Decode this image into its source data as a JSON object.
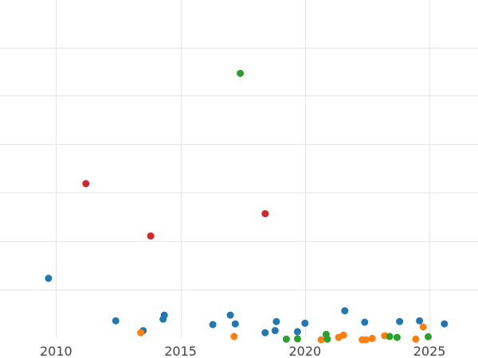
{
  "chart_data": {
    "type": "scatter",
    "title": "",
    "xlabel": "",
    "ylabel": "",
    "xlim": [
      2007.75,
      2026.95
    ],
    "ylim": [
      0,
      100
    ],
    "grid": true,
    "x_ticks": [
      2010,
      2015,
      2020,
      2025
    ],
    "x_tick_labels": [
      "2010",
      "2015",
      "2020",
      "2025"
    ],
    "y_ticks": [
      14.3,
      28.7,
      43.0,
      57.3,
      71.7,
      86.0
    ],
    "colors": {
      "blue": "#1f77b4",
      "orange": "#ff7f0e",
      "green": "#2ca02c",
      "red": "#d62728"
    },
    "series": [
      {
        "color_key": "blue",
        "points": [
          {
            "x": 2009.7,
            "y": 17.7
          },
          {
            "x": 2012.4,
            "y": 5.1
          },
          {
            "x": 2013.5,
            "y": 2.2
          },
          {
            "x": 2014.3,
            "y": 5.6
          },
          {
            "x": 2014.35,
            "y": 6.8
          },
          {
            "x": 2016.3,
            "y": 4.0
          },
          {
            "x": 2017.0,
            "y": 6.8
          },
          {
            "x": 2017.2,
            "y": 4.2
          },
          {
            "x": 2018.4,
            "y": 1.6
          },
          {
            "x": 2018.8,
            "y": 2.2
          },
          {
            "x": 2018.85,
            "y": 4.9
          },
          {
            "x": 2019.7,
            "y": 1.9
          },
          {
            "x": 2020.0,
            "y": 4.4
          },
          {
            "x": 2021.6,
            "y": 8.1
          },
          {
            "x": 2022.4,
            "y": 4.7
          },
          {
            "x": 2023.8,
            "y": 4.9
          },
          {
            "x": 2024.6,
            "y": 5.1
          },
          {
            "x": 2025.6,
            "y": 4.2
          }
        ]
      },
      {
        "color_key": "orange",
        "points": [
          {
            "x": 2013.4,
            "y": 1.6
          },
          {
            "x": 2017.15,
            "y": 0.5
          },
          {
            "x": 2020.65,
            "y": -0.5
          },
          {
            "x": 2021.35,
            "y": 0.2
          },
          {
            "x": 2021.55,
            "y": 0.9
          },
          {
            "x": 2022.3,
            "y": -0.5
          },
          {
            "x": 2022.45,
            "y": -0.5
          },
          {
            "x": 2022.7,
            "y": -0.1
          },
          {
            "x": 2023.2,
            "y": 0.7
          },
          {
            "x": 2024.45,
            "y": -0.3
          },
          {
            "x": 2024.75,
            "y": 3.3
          }
        ]
      },
      {
        "color_key": "green",
        "points": [
          {
            "x": 2017.4,
            "y": 78.3
          },
          {
            "x": 2019.25,
            "y": -0.3
          },
          {
            "x": 2019.7,
            "y": -0.2
          },
          {
            "x": 2020.85,
            "y": 1.1
          },
          {
            "x": 2020.9,
            "y": -0.3
          },
          {
            "x": 2023.4,
            "y": 0.5
          },
          {
            "x": 2023.7,
            "y": 0.2
          },
          {
            "x": 2024.95,
            "y": 0.4
          }
        ]
      },
      {
        "color_key": "red",
        "points": [
          {
            "x": 2011.2,
            "y": 45.7
          },
          {
            "x": 2013.8,
            "y": 30.2
          },
          {
            "x": 2018.4,
            "y": 36.8
          }
        ]
      }
    ]
  }
}
